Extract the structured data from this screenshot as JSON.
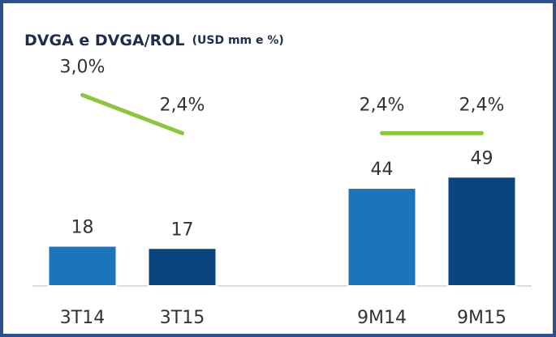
{
  "chart_data": {
    "type": "bar-line",
    "title": "DVGA e DVGA/ROL",
    "subtitle": "(USD mm e %)",
    "categories": [
      "3T14",
      "3T15",
      null,
      "9M14",
      "9M15"
    ],
    "series": [
      {
        "type": "bar",
        "values": [
          18,
          17,
          null,
          44,
          49
        ],
        "colors": [
          "#1b75bc",
          "#0a4580",
          null,
          "#1b75bc",
          "#0a4580"
        ]
      },
      {
        "type": "line",
        "axis": "y2",
        "color": "#8cc63f",
        "values": [
          3.0,
          2.4,
          null,
          2.4,
          2.4
        ],
        "value_labels": [
          "3,0%",
          "2,4%",
          null,
          "2,4%",
          "2,4%"
        ]
      }
    ],
    "ylim": [
      0,
      100
    ],
    "y2lim": [
      0,
      3.5
    ]
  }
}
